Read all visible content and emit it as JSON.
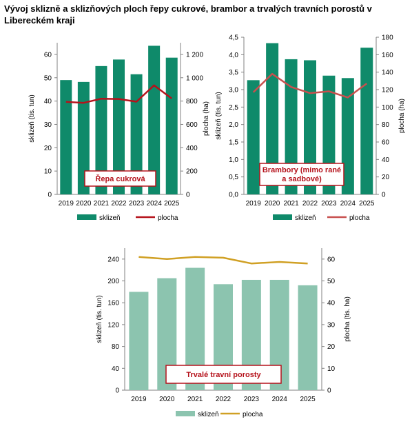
{
  "title": "Vývoj sklizně a sklizňových ploch řepy cukrové, brambor a trvalých travních porostů v Libereckém kraji",
  "chart_data": [
    {
      "type": "bar",
      "title": "Řepa cukrová",
      "categories": [
        "2019",
        "2020",
        "2021",
        "2022",
        "2023",
        "2024",
        "2025"
      ],
      "series": [
        {
          "name": "sklizeň",
          "type": "bar",
          "axis": "left",
          "color": "#0f8a6a",
          "values": [
            49,
            48.2,
            55,
            57.8,
            51.5,
            63.7,
            58.6
          ]
        },
        {
          "name": "plocha",
          "type": "line",
          "axis": "right",
          "color": "#b5121b",
          "values": [
            793,
            785,
            820,
            818,
            795,
            935,
            822
          ]
        }
      ],
      "ylabel": "sklizeň (tis. tun)",
      "y2label": "plocha (ha)",
      "ylim": [
        0,
        65
      ],
      "yticks": [
        "0",
        "10",
        "20",
        "30",
        "40",
        "50",
        "60"
      ],
      "y2lim": [
        0,
        1300
      ],
      "y2ticks": [
        "0",
        "200",
        "400",
        "600",
        "800",
        "1 000",
        "1 200"
      ],
      "legend": "bottom"
    },
    {
      "type": "bar",
      "title": "Brambory (mimo rané a sadbové)",
      "categories": [
        "2019",
        "2020",
        "2021",
        "2022",
        "2023",
        "2024",
        "2025"
      ],
      "series": [
        {
          "name": "sklizeň",
          "type": "bar",
          "axis": "left",
          "color": "#0f8a6a",
          "values": [
            3.27,
            4.33,
            3.87,
            3.84,
            3.4,
            3.33,
            4.2
          ]
        },
        {
          "name": "plocha",
          "type": "line",
          "axis": "right",
          "color": "#c8504e",
          "values": [
            117,
            138,
            123,
            116,
            118,
            111,
            127
          ]
        }
      ],
      "ylabel": "sklizeň (tis. tun)",
      "y2label": "plocha (ha)",
      "ylim": [
        0,
        4.5
      ],
      "yticks": [
        "0,0",
        "0,5",
        "1,0",
        "1,5",
        "2,0",
        "2,5",
        "3,0",
        "3,5",
        "4,0",
        "4,5"
      ],
      "y2lim": [
        0,
        180
      ],
      "y2ticks": [
        "0",
        "20",
        "40",
        "60",
        "80",
        "100",
        "120",
        "140",
        "160",
        "180"
      ],
      "legend": "bottom"
    },
    {
      "type": "bar",
      "title": "Trvalé travní porosty",
      "categories": [
        "2019",
        "2020",
        "2021",
        "2022",
        "2023",
        "2024",
        "2025"
      ],
      "series": [
        {
          "name": "sklizeň",
          "type": "bar",
          "axis": "left",
          "color": "#8cc4af",
          "values": [
            180,
            205,
            224,
            194,
            202,
            202,
            192
          ]
        },
        {
          "name": "plocha",
          "type": "line",
          "axis": "right",
          "color": "#d0a024",
          "values": [
            61,
            60,
            61,
            60.6,
            58,
            58.7,
            58
          ]
        }
      ],
      "ylabel": "sklizeň (tis. tun)",
      "y2label": "plocha (tis. ha)",
      "ylim": [
        0,
        260
      ],
      "yticks": [
        "0",
        "40",
        "80",
        "120",
        "160",
        "200",
        "240"
      ],
      "y2lim": [
        0,
        65
      ],
      "y2ticks": [
        "0",
        "10",
        "20",
        "30",
        "40",
        "50",
        "60"
      ],
      "legend": "bottom"
    }
  ]
}
